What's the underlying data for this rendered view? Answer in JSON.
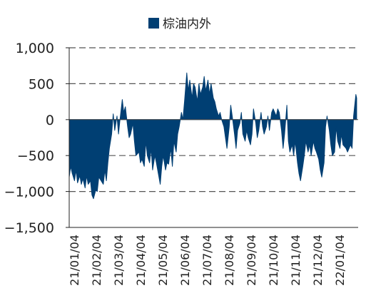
{
  "chart_data": {
    "type": "area",
    "title": "",
    "xlabel": "",
    "ylabel": "",
    "series": [
      {
        "name": "棕油内外",
        "color": "#003F73",
        "points": [
          [
            "2021-01-04",
            -800
          ],
          [
            "2021-01-06",
            -650
          ],
          [
            "2021-01-08",
            -750
          ],
          [
            "2021-01-11",
            -850
          ],
          [
            "2021-01-13",
            -700
          ],
          [
            "2021-01-15",
            -880
          ],
          [
            "2021-01-18",
            -780
          ],
          [
            "2021-01-20",
            -900
          ],
          [
            "2021-01-22",
            -820
          ],
          [
            "2021-01-25",
            -950
          ],
          [
            "2021-01-27",
            -780
          ],
          [
            "2021-01-29",
            -900
          ],
          [
            "2021-02-01",
            -850
          ],
          [
            "2021-02-03",
            -1050
          ],
          [
            "2021-02-05",
            -1100
          ],
          [
            "2021-02-08",
            -980
          ],
          [
            "2021-02-10",
            -1000
          ],
          [
            "2021-02-12",
            -800
          ],
          [
            "2021-02-18",
            -900
          ],
          [
            "2021-02-20",
            -700
          ],
          [
            "2021-02-22",
            -850
          ],
          [
            "2021-02-24",
            -600
          ],
          [
            "2021-02-26",
            -400
          ],
          [
            "2021-03-01",
            -200
          ],
          [
            "2021-03-03",
            80
          ],
          [
            "2021-03-05",
            -150
          ],
          [
            "2021-03-08",
            50
          ],
          [
            "2021-03-10",
            -200
          ],
          [
            "2021-03-12",
            0
          ],
          [
            "2021-03-15",
            280
          ],
          [
            "2021-03-17",
            100
          ],
          [
            "2021-03-19",
            180
          ],
          [
            "2021-03-22",
            -100
          ],
          [
            "2021-03-24",
            -250
          ],
          [
            "2021-03-26",
            -200
          ],
          [
            "2021-03-29",
            -50
          ],
          [
            "2021-03-31",
            -300
          ],
          [
            "2021-04-02",
            -500
          ],
          [
            "2021-04-06",
            -450
          ],
          [
            "2021-04-08",
            -600
          ],
          [
            "2021-04-10",
            -550
          ],
          [
            "2021-04-13",
            -650
          ],
          [
            "2021-04-15",
            -300
          ],
          [
            "2021-04-17",
            -500
          ],
          [
            "2021-04-20",
            -600
          ],
          [
            "2021-04-22",
            -400
          ],
          [
            "2021-04-24",
            -700
          ],
          [
            "2021-04-27",
            -500
          ],
          [
            "2021-04-29",
            -600
          ],
          [
            "2021-05-04",
            -900
          ],
          [
            "2021-05-06",
            -650
          ],
          [
            "2021-05-08",
            -500
          ],
          [
            "2021-05-11",
            -700
          ],
          [
            "2021-05-13",
            -600
          ],
          [
            "2021-05-15",
            -620
          ],
          [
            "2021-05-18",
            -400
          ],
          [
            "2021-05-20",
            -650
          ],
          [
            "2021-05-22",
            -300
          ],
          [
            "2021-05-25",
            -450
          ],
          [
            "2021-05-27",
            -200
          ],
          [
            "2021-05-29",
            -100
          ],
          [
            "2021-06-01",
            100
          ],
          [
            "2021-06-03",
            0
          ],
          [
            "2021-06-05",
            250
          ],
          [
            "2021-06-08",
            650
          ],
          [
            "2021-06-10",
            400
          ],
          [
            "2021-06-12",
            550
          ],
          [
            "2021-06-15",
            300
          ],
          [
            "2021-06-17",
            500
          ],
          [
            "2021-06-19",
            450
          ],
          [
            "2021-06-22",
            250
          ],
          [
            "2021-06-24",
            500
          ],
          [
            "2021-06-26",
            350
          ],
          [
            "2021-06-29",
            450
          ],
          [
            "2021-07-01",
            600
          ],
          [
            "2021-07-03",
            400
          ],
          [
            "2021-07-06",
            550
          ],
          [
            "2021-07-08",
            350
          ],
          [
            "2021-07-10",
            500
          ],
          [
            "2021-07-13",
            300
          ],
          [
            "2021-07-15",
            250
          ],
          [
            "2021-07-17",
            150
          ],
          [
            "2021-07-20",
            50
          ],
          [
            "2021-07-22",
            100
          ],
          [
            "2021-07-24",
            0
          ],
          [
            "2021-07-27",
            -100
          ],
          [
            "2021-07-29",
            -250
          ],
          [
            "2021-07-31",
            -400
          ],
          [
            "2021-08-03",
            -100
          ],
          [
            "2021-08-05",
            200
          ],
          [
            "2021-08-07",
            50
          ],
          [
            "2021-08-10",
            -200
          ],
          [
            "2021-08-12",
            -400
          ],
          [
            "2021-08-14",
            -150
          ],
          [
            "2021-08-17",
            -50
          ],
          [
            "2021-08-19",
            100
          ],
          [
            "2021-08-21",
            -200
          ],
          [
            "2021-08-24",
            -300
          ],
          [
            "2021-08-26",
            -150
          ],
          [
            "2021-08-28",
            -250
          ],
          [
            "2021-08-31",
            -350
          ],
          [
            "2021-09-02",
            -200
          ],
          [
            "2021-09-04",
            150
          ],
          [
            "2021-09-07",
            -50
          ],
          [
            "2021-09-09",
            -250
          ],
          [
            "2021-09-11",
            -150
          ],
          [
            "2021-09-14",
            100
          ],
          [
            "2021-09-16",
            -100
          ],
          [
            "2021-09-18",
            -200
          ],
          [
            "2021-09-21",
            -100
          ],
          [
            "2021-09-23",
            50
          ],
          [
            "2021-09-25",
            -150
          ],
          [
            "2021-09-28",
            100
          ],
          [
            "2021-09-30",
            150
          ],
          [
            "2021-10-04",
            50
          ],
          [
            "2021-10-06",
            150
          ],
          [
            "2021-10-08",
            100
          ],
          [
            "2021-10-11",
            -150
          ],
          [
            "2021-10-13",
            -400
          ],
          [
            "2021-10-15",
            -200
          ],
          [
            "2021-10-18",
            200
          ],
          [
            "2021-10-20",
            -300
          ],
          [
            "2021-10-22",
            -450
          ],
          [
            "2021-10-25",
            -350
          ],
          [
            "2021-10-27",
            -500
          ],
          [
            "2021-10-29",
            -300
          ],
          [
            "2021-11-01",
            -600
          ],
          [
            "2021-11-03",
            -750
          ],
          [
            "2021-11-05",
            -850
          ],
          [
            "2021-11-08",
            -650
          ],
          [
            "2021-11-10",
            -500
          ],
          [
            "2021-11-12",
            -300
          ],
          [
            "2021-11-15",
            -450
          ],
          [
            "2021-11-17",
            -350
          ],
          [
            "2021-11-19",
            -500
          ],
          [
            "2021-11-22",
            -300
          ],
          [
            "2021-11-24",
            -400
          ],
          [
            "2021-11-26",
            -450
          ],
          [
            "2021-11-29",
            -550
          ],
          [
            "2021-12-01",
            -700
          ],
          [
            "2021-12-03",
            -800
          ],
          [
            "2021-12-06",
            -600
          ],
          [
            "2021-12-08",
            -100
          ],
          [
            "2021-12-10",
            50
          ],
          [
            "2021-12-13",
            -150
          ],
          [
            "2021-12-15",
            -350
          ],
          [
            "2021-12-17",
            -500
          ],
          [
            "2021-12-20",
            -450
          ],
          [
            "2021-12-22",
            -100
          ],
          [
            "2021-12-24",
            -300
          ],
          [
            "2021-12-27",
            -400
          ],
          [
            "2021-12-29",
            -200
          ],
          [
            "2021-12-31",
            -350
          ],
          [
            "2022-01-04",
            -400
          ],
          [
            "2022-01-06",
            -450
          ],
          [
            "2022-01-10",
            -350
          ],
          [
            "2022-01-12",
            -400
          ],
          [
            "2022-01-14",
            50
          ],
          [
            "2022-01-17",
            350
          ],
          [
            "2022-01-18",
            300
          ]
        ]
      }
    ],
    "x_tick_labels": [
      "21/01/04",
      "21/02/04",
      "21/03/04",
      "21/04/04",
      "21/05/04",
      "21/06/04",
      "21/07/04",
      "21/08/04",
      "21/09/04",
      "21/10/04",
      "21/11/04",
      "21/12/04",
      "22/01/04"
    ],
    "y_ticks": [
      1000,
      500,
      0,
      -500,
      -1000,
      -1500
    ],
    "y_tick_labels": [
      "1,000",
      "500",
      "0",
      "−500",
      "−1,000",
      "−1,500"
    ],
    "ylim": [
      -1500,
      1000
    ],
    "xlim": [
      "2021-01-04",
      "2022-01-20"
    ],
    "grid": "horizontal dashed",
    "legend_position": "top"
  }
}
